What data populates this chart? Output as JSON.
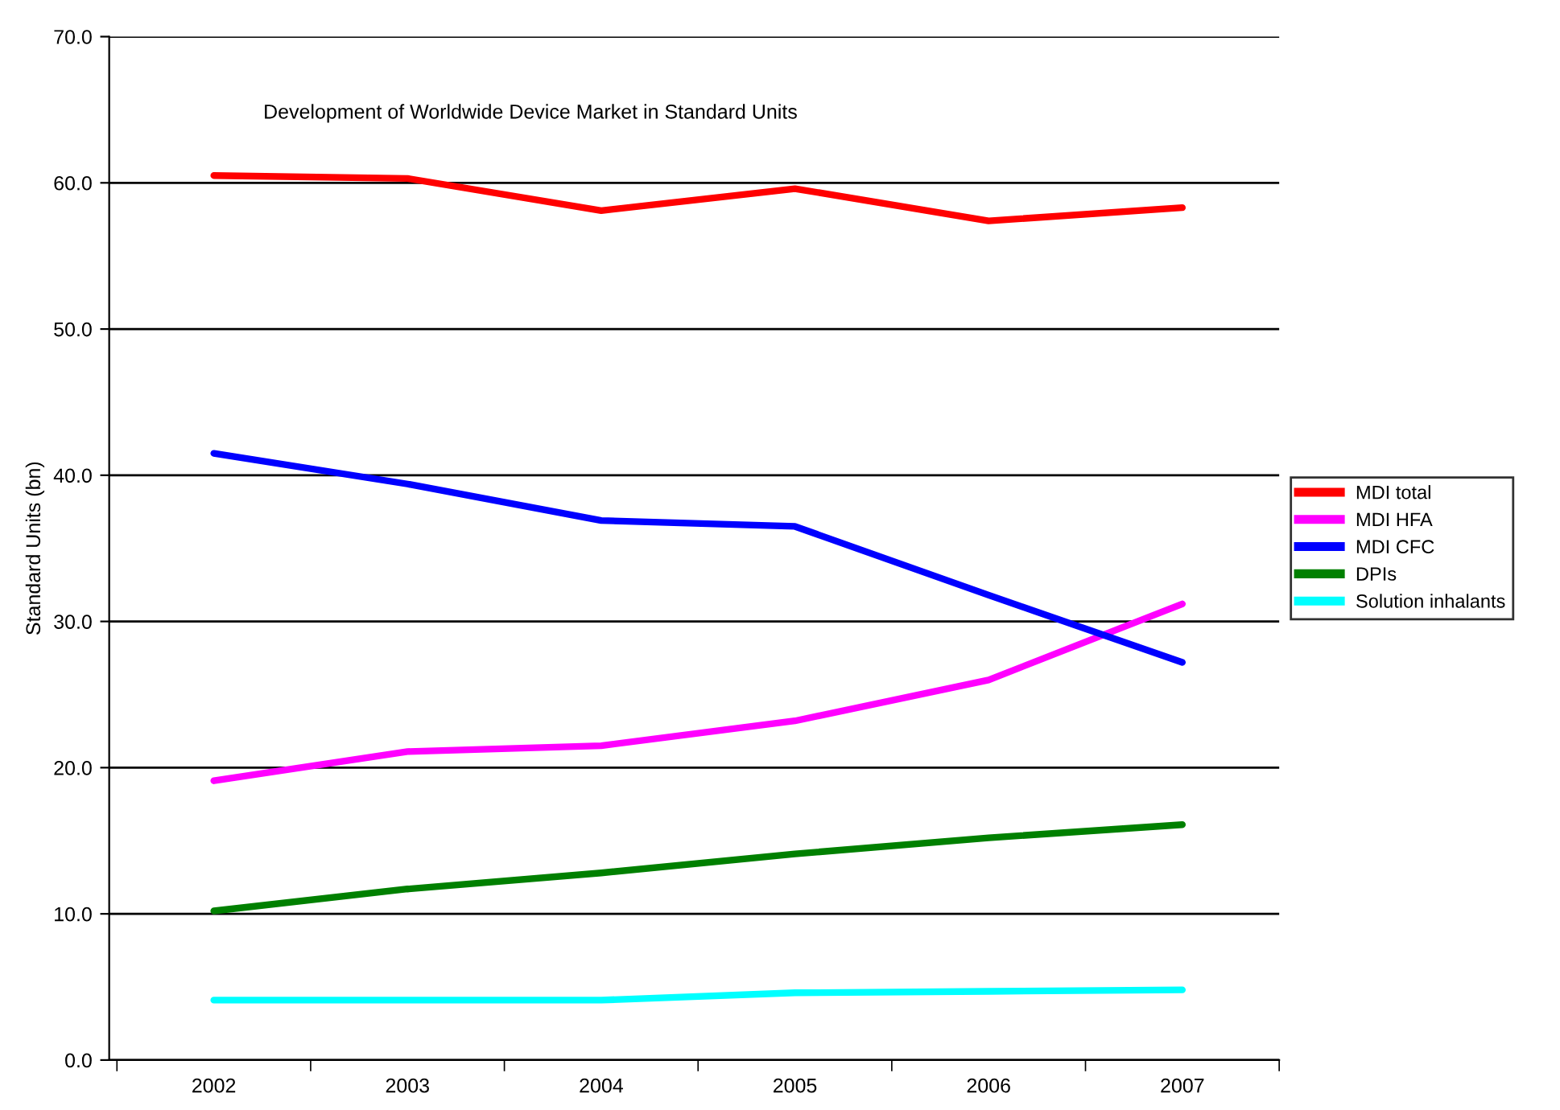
{
  "chart_data": {
    "type": "line",
    "title": "Development of Worldwide Device Market in Standard Units",
    "ylabel": "Standard Units (bn)",
    "categories": [
      "2002",
      "2003",
      "2004",
      "2005",
      "2006",
      "2007"
    ],
    "series": [
      {
        "name": "MDI total",
        "color": "#ff0000",
        "values": [
          60.5,
          60.3,
          58.1,
          59.6,
          57.4,
          58.3
        ]
      },
      {
        "name": "MDI HFA",
        "color": "#ff00ff",
        "values": [
          19.1,
          21.1,
          21.5,
          23.2,
          26.0,
          31.2
        ]
      },
      {
        "name": "MDI CFC",
        "color": "#0000ff",
        "values": [
          41.5,
          39.4,
          36.9,
          36.5,
          31.8,
          27.2
        ]
      },
      {
        "name": "DPIs",
        "color": "#008000",
        "values": [
          10.2,
          11.7,
          12.8,
          14.1,
          15.2,
          16.1
        ]
      },
      {
        "name": "Solution inhalants",
        "color": "#00ffff",
        "values": [
          4.1,
          4.1,
          4.1,
          4.6,
          4.7,
          4.8
        ]
      }
    ],
    "ylim": [
      0,
      70
    ],
    "yticks": [
      {
        "value": 0,
        "label": "0.0"
      },
      {
        "value": 10,
        "label": "10.0"
      },
      {
        "value": 20,
        "label": "20.0"
      },
      {
        "value": 30,
        "label": "30.0"
      },
      {
        "value": 40,
        "label": "40.0"
      },
      {
        "value": 50,
        "label": "50.0"
      },
      {
        "value": 60,
        "label": "60.0"
      },
      {
        "value": 70,
        "label": "70.0"
      }
    ],
    "grid": "y",
    "legend": "right",
    "marker": "none",
    "line_style": "solid"
  }
}
